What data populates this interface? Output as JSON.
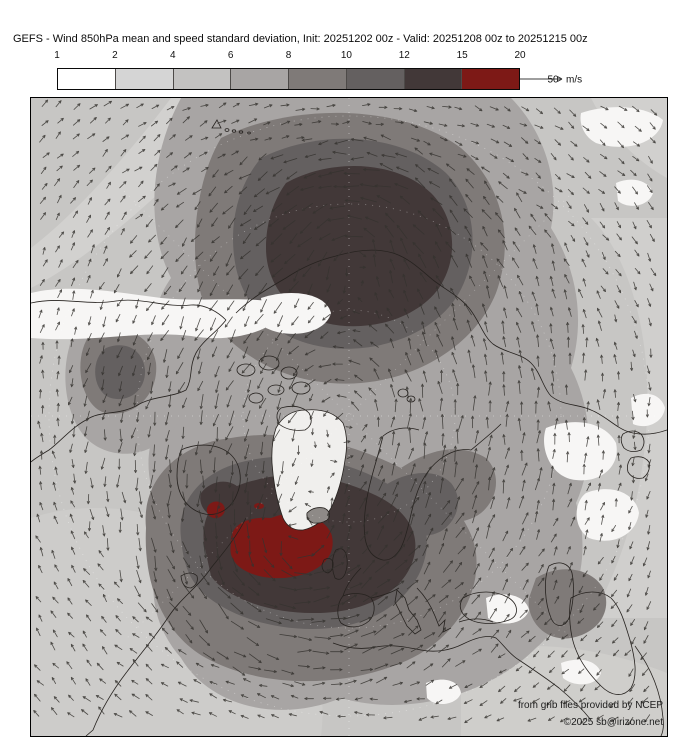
{
  "title": "GEFS - Wind 850hPa mean and speed standard deviation, Init: 20251202 00z - Valid: 20251208 00z to 20251215 00z",
  "colorbar": {
    "ticks": [
      "1",
      "2",
      "4",
      "6",
      "8",
      "10",
      "12",
      "15",
      "20"
    ],
    "segments": [
      {
        "range": "1-2",
        "color": "#ffffff"
      },
      {
        "range": "2-4",
        "color": "#d5d5d5"
      },
      {
        "range": "4-6",
        "color": "#c3c2c1"
      },
      {
        "range": "6-8",
        "color": "#a8a5a4"
      },
      {
        "range": "8-10",
        "color": "#7f7a78"
      },
      {
        "range": "10-12",
        "color": "#646060"
      },
      {
        "range": "12-15",
        "color": "#423838"
      },
      {
        "range": "15-20",
        "color": "#7d1916"
      }
    ]
  },
  "reference_vector": {
    "value": "50",
    "units": "m/s"
  },
  "map": {
    "attribution_line1": "from grib files provided by NCEP",
    "attribution_line2": "©2025 sb@irizone.net"
  },
  "chart_data": {
    "type": "heatmap",
    "title": "GEFS - Wind 850hPa mean and speed standard deviation",
    "init": "20251202 00z",
    "valid": "20251208 00z to 20251215 00z",
    "variable": "850 hPa wind speed standard deviation",
    "units": "m/s",
    "levels": [
      1,
      2,
      4,
      6,
      8,
      10,
      12,
      15,
      20
    ],
    "palette": [
      "#ffffff",
      "#d5d5d5",
      "#c3c2c1",
      "#a8a5a4",
      "#7f7a78",
      "#646060",
      "#423838",
      "#7d1916"
    ],
    "overlay": "mean wind vectors (arrows), reference arrow = 50 m/s",
    "projection": "Northern Hemisphere polar stereographic",
    "legend_position": "top",
    "notable_features": [
      {
        "region": "North Atlantic south of Iceland / west of UK",
        "value": "15-20 m/s maximum (red)"
      },
      {
        "region": "North Pacific / eastern Siberia Arctic",
        "value": "12-15 m/s maximum (dark brown)"
      },
      {
        "region": "Greenland interior, northern Canada band, central Asia",
        "value": "< 2 m/s minima (white)"
      }
    ]
  }
}
